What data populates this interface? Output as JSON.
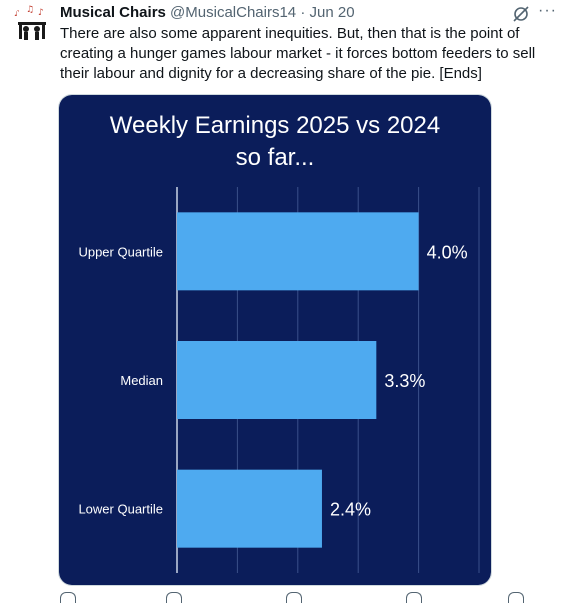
{
  "tweet": {
    "author_name": "Musical Chairs",
    "handle": "@MusicalChairs14",
    "separator": "·",
    "date": "Jun 20",
    "text": "There are also some apparent inequities. But, then that is the point of creating a hunger games labour market - it forces bottom feeders to sell their labour and dignity for a decreasing share of the pie. [Ends]",
    "icons": {
      "avatar": "musical-chairs-avatar",
      "grok": "grok-icon",
      "more": "more-icon"
    },
    "more_glyph": "···"
  },
  "colors": {
    "chart_background": "#0b1d5a",
    "bar": "#4eaaf0",
    "text_dark": "#0f1419",
    "text_muted": "#536471"
  },
  "chart_data": {
    "type": "bar",
    "orientation": "horizontal",
    "title": "Weekly Earnings 2025 vs 2024",
    "subtitle": "so far...",
    "categories": [
      "Upper Quartile",
      "Median",
      "Lower Quartile"
    ],
    "values": [
      4.0,
      3.3,
      2.4
    ],
    "value_labels": [
      "4.0%",
      "3.3%",
      "2.4%"
    ],
    "xlim": [
      0,
      5
    ],
    "grid": true,
    "legend": "none"
  }
}
